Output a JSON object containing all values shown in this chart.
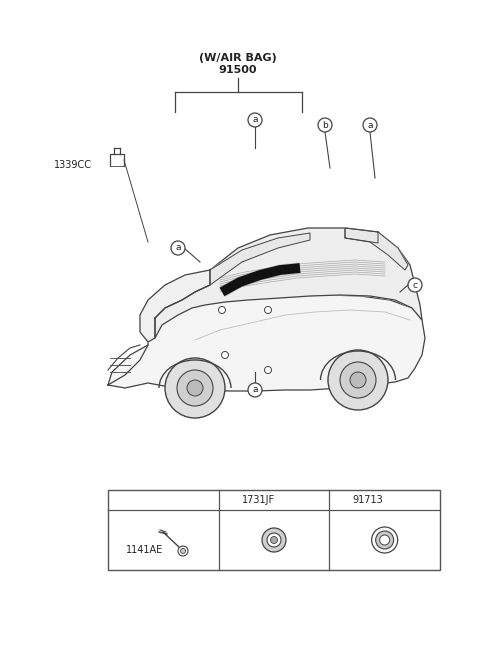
{
  "bg_color": "#ffffff",
  "line_color": "#444444",
  "font_color": "#222222",
  "part_label_airbag": "(W/AIR BAG)",
  "part_label_main": "91500",
  "part_label_1339CC": "1339CC",
  "table_col_b_part": "1731JF",
  "table_col_c_part": "91713",
  "table_col_a_part": "1141AE",
  "table_border_color": "#555555"
}
